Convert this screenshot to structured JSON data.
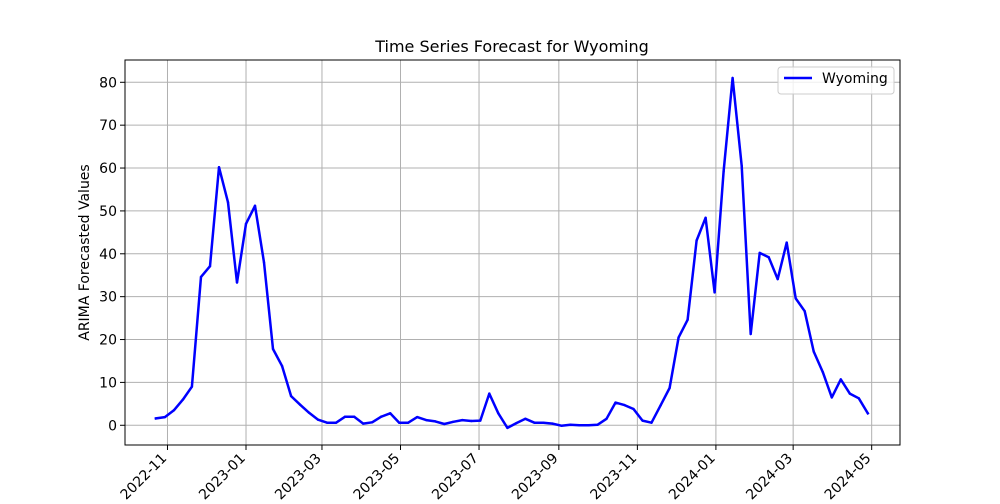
{
  "chart_data": {
    "type": "line",
    "title": "Time Series Forecast for Wyoming",
    "xlabel": "",
    "ylabel": "ARIMA Forecasted Values",
    "xlim": [
      "2022-09-29",
      "2024-05-23"
    ],
    "ylim": [
      -4.6,
      85.2
    ],
    "grid": true,
    "legend_position": "upper right",
    "x_ticks": [
      "2022-11",
      "2023-01",
      "2023-03",
      "2023-05",
      "2023-07",
      "2023-09",
      "2023-11",
      "2024-01",
      "2024-03",
      "2024-05"
    ],
    "y_ticks": [
      "0",
      "10",
      "20",
      "30",
      "40",
      "50",
      "60",
      "70",
      "80"
    ],
    "series": [
      {
        "name": "Wyoming",
        "color": "#0000ff",
        "x": [
          "2022-10-23",
          "2022-10-30",
          "2022-11-06",
          "2022-11-13",
          "2022-11-20",
          "2022-11-27",
          "2022-12-04",
          "2022-12-11",
          "2022-12-18",
          "2022-12-25",
          "2023-01-01",
          "2023-01-08",
          "2023-01-15",
          "2023-01-22",
          "2023-01-29",
          "2023-02-05",
          "2023-02-12",
          "2023-02-19",
          "2023-02-26",
          "2023-03-05",
          "2023-03-12",
          "2023-03-19",
          "2023-03-26",
          "2023-04-02",
          "2023-04-09",
          "2023-04-16",
          "2023-04-23",
          "2023-04-30",
          "2023-05-07",
          "2023-05-14",
          "2023-05-21",
          "2023-05-28",
          "2023-06-04",
          "2023-06-11",
          "2023-06-18",
          "2023-06-25",
          "2023-07-02",
          "2023-07-09",
          "2023-07-16",
          "2023-07-23",
          "2023-07-30",
          "2023-08-06",
          "2023-08-13",
          "2023-08-20",
          "2023-08-27",
          "2023-09-03",
          "2023-09-10",
          "2023-09-17",
          "2023-09-24",
          "2023-10-01",
          "2023-10-08",
          "2023-10-15",
          "2023-10-22",
          "2023-10-29",
          "2023-11-05",
          "2023-11-12",
          "2023-11-19",
          "2023-11-26",
          "2023-12-03",
          "2023-12-10",
          "2023-12-17",
          "2023-12-24",
          "2023-12-31",
          "2024-01-07",
          "2024-01-14",
          "2024-01-21",
          "2024-01-28",
          "2024-02-04",
          "2024-02-11",
          "2024-02-18",
          "2024-02-25",
          "2024-03-03",
          "2024-03-10",
          "2024-03-17",
          "2024-03-24",
          "2024-03-31",
          "2024-04-07",
          "2024-04-14",
          "2024-04-21",
          "2024-04-28"
        ],
        "values": [
          1.6,
          1.9,
          3.5,
          6.0,
          9.0,
          34.6,
          37.1,
          60.2,
          52.0,
          33.3,
          47.0,
          51.2,
          38.0,
          17.8,
          13.8,
          6.8,
          4.8,
          2.9,
          1.3,
          0.6,
          0.6,
          2.0,
          2.0,
          0.4,
          0.7,
          2.0,
          2.8,
          0.6,
          0.6,
          1.9,
          1.2,
          0.9,
          0.3,
          0.8,
          1.2,
          1.0,
          1.1,
          7.4,
          2.8,
          -0.6,
          0.5,
          1.5,
          0.6,
          0.6,
          0.4,
          -0.1,
          0.1,
          0.0,
          0.0,
          0.1,
          1.5,
          5.3,
          4.7,
          3.8,
          1.1,
          0.6,
          4.6,
          8.7,
          20.5,
          24.6,
          43.1,
          48.4,
          31.0,
          59.2,
          81.0,
          60.5,
          21.3,
          40.2,
          39.2,
          34.1,
          42.6,
          29.6,
          26.6,
          17.2,
          12.4,
          6.5,
          10.7,
          7.4,
          6.3,
          2.8
        ]
      }
    ]
  }
}
